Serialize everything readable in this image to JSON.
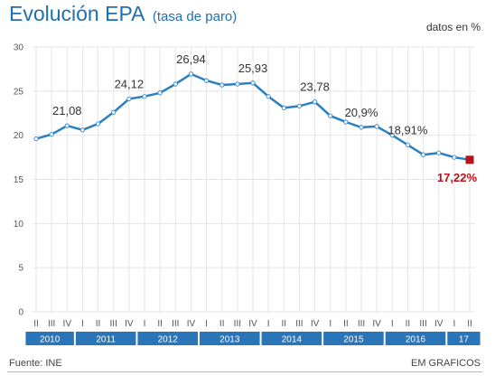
{
  "header": {
    "title": "Evolución EPA",
    "subtitle": "(tasa de paro)",
    "unit": "datos en %"
  },
  "footer": {
    "source": "Fuente: INE",
    "credit": "EM GRAFICOS"
  },
  "colors": {
    "line": "#2a7fc1",
    "band": "#2a74b8",
    "last_point": "#b5121b",
    "grid": "#e4e4e4"
  },
  "chart_data": {
    "type": "line",
    "ylim": [
      0,
      30
    ],
    "yticks": [
      "0",
      "5",
      "10",
      "15",
      "20",
      "25",
      "30"
    ],
    "quarters": [
      "II",
      "III",
      "IV",
      "I",
      "II",
      "III",
      "IV",
      "I",
      "II",
      "III",
      "IV",
      "I",
      "II",
      "III",
      "IV",
      "I",
      "II",
      "III",
      "IV",
      "I",
      "II",
      "III",
      "IV",
      "I",
      "II",
      "III",
      "IV",
      "I",
      "II"
    ],
    "years": [
      {
        "label": "2010",
        "quarters": 3
      },
      {
        "label": "2011",
        "quarters": 4
      },
      {
        "label": "2012",
        "quarters": 4
      },
      {
        "label": "2013",
        "quarters": 4
      },
      {
        "label": "2014",
        "quarters": 4
      },
      {
        "label": "2015",
        "quarters": 4
      },
      {
        "label": "2016",
        "quarters": 4
      },
      {
        "label": "17",
        "quarters": 2
      }
    ],
    "values": [
      19.6,
      20.1,
      21.08,
      20.6,
      21.3,
      22.6,
      24.12,
      24.4,
      24.8,
      25.8,
      26.94,
      26.2,
      25.7,
      25.8,
      25.93,
      24.4,
      23.1,
      23.3,
      23.78,
      22.2,
      21.5,
      20.9,
      21.0,
      20.0,
      18.91,
      17.8,
      18.0,
      17.5,
      17.22
    ],
    "point_labels": [
      {
        "index": 2,
        "text": "21,08"
      },
      {
        "index": 6,
        "text": "24,12"
      },
      {
        "index": 10,
        "text": "26,94"
      },
      {
        "index": 14,
        "text": "25,93"
      },
      {
        "index": 18,
        "text": "23,78"
      },
      {
        "index": 21,
        "text": "20,9%"
      },
      {
        "index": 24,
        "text": "18,91%"
      }
    ],
    "last_label": "17,22%"
  }
}
